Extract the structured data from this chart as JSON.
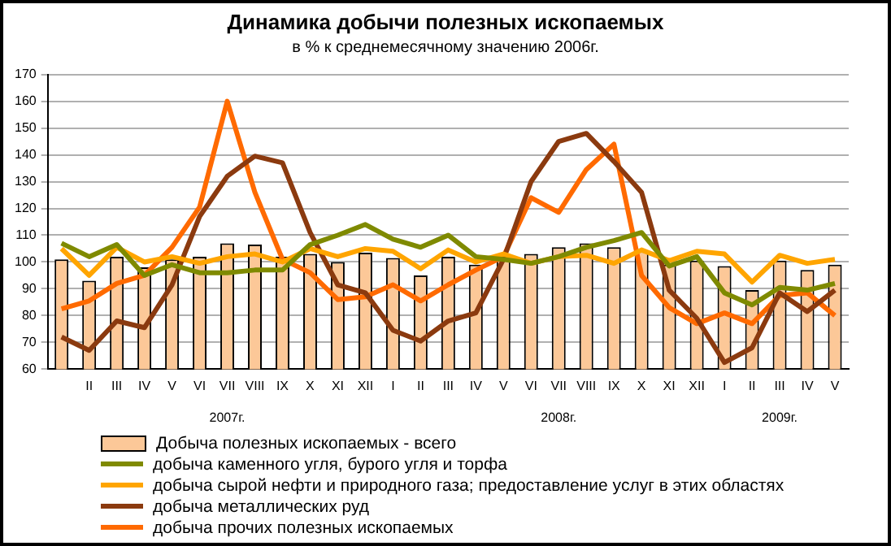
{
  "chart_data": {
    "type": "bar",
    "title": "Динамика добычи полезных ископаемых",
    "subtitle": "в % к среднемесячному значению 2006г.",
    "categories": [
      null,
      "II",
      "III",
      "IV",
      "V",
      "VI",
      "VII\n\n2007г.",
      "VIII",
      "IX",
      "X",
      "XI",
      "XII",
      "I",
      "II",
      "III",
      "IV",
      "V",
      "VI",
      "VII\n\n2008г.",
      "VIII",
      "IX",
      "X",
      "XI",
      "XII",
      "I",
      "II",
      "III\n\n2009г.",
      "IV",
      "V"
    ],
    "series": [
      {
        "name": "Добыча полезных ископаемых - всего",
        "color": "#fcc898",
        "values": [
          101,
          93,
          102,
          98,
          101,
          102,
          107,
          106.5,
          102,
          103,
          100,
          103.5,
          101.5,
          95,
          102,
          99,
          101,
          103,
          105.5,
          107,
          105.5,
          104,
          99,
          100.5,
          98.5,
          89.5,
          100.5,
          97,
          99
        ]
      },
      {
        "name": "добыча каменного угля, бурого угля и торфа",
        "type": "line",
        "color": "#7f8a00",
        "values": [
          107,
          102,
          106.5,
          95,
          99,
          96,
          96,
          97,
          97,
          106.5,
          110,
          114,
          108.5,
          105.5,
          110,
          102,
          101,
          99.5,
          102,
          105.5,
          108,
          111,
          98.5,
          102,
          88.5,
          84,
          90.5,
          89.5,
          92
        ]
      },
      {
        "name": "добыча сырой нефти и природного газа; предоставление услуг в этих областях",
        "type": "line",
        "color": "#ffa500",
        "values": [
          105,
          95,
          105.5,
          100,
          102,
          99.5,
          102,
          103,
          100,
          105,
          102,
          105,
          104,
          97.5,
          104.5,
          100,
          103,
          99.5,
          102,
          102.5,
          99.5,
          104.5,
          100.5,
          104,
          103,
          92.5,
          102.5,
          99.5,
          101
        ]
      },
      {
        "name": "добыча металлических руд",
        "type": "line",
        "color": "#8b3a0f",
        "values": [
          72,
          67,
          78,
          75.5,
          91.5,
          117,
          132,
          139.5,
          137,
          111,
          91.5,
          88.5,
          74.5,
          70.5,
          78,
          81,
          101,
          130,
          145,
          148,
          137.5,
          126,
          89.5,
          79,
          62.5,
          68,
          88.5,
          81.5,
          89.5
        ]
      },
      {
        "name": "добыча прочих полезных ископаемых",
        "type": "line",
        "color": "#ff6a00",
        "values": [
          82.5,
          85.5,
          92,
          95,
          105.5,
          120.5,
          160,
          126,
          101,
          96,
          86,
          87,
          91.5,
          85.5,
          91.5,
          97,
          102,
          124,
          118.5,
          134.5,
          144,
          95,
          83,
          77,
          81,
          77,
          87.5,
          88.5,
          80
        ]
      }
    ],
    "ylim": [
      60,
      170
    ],
    "yticks": [
      60,
      70,
      80,
      90,
      100,
      110,
      120,
      130,
      140,
      150,
      160,
      170
    ],
    "grid": "y",
    "legend": "bottom"
  }
}
